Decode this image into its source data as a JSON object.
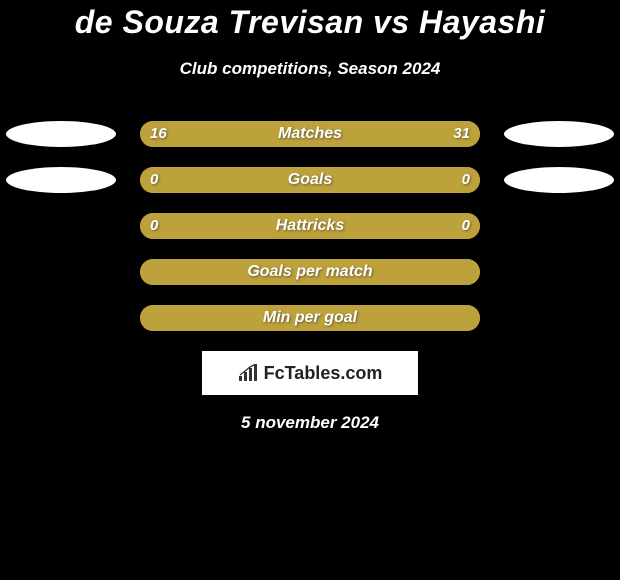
{
  "title": "de Souza Trevisan vs Hayashi",
  "subtitle": "Club competitions, Season 2024",
  "colors": {
    "background": "#000000",
    "bar": "#bda13a",
    "bar_alt": "#bda13a",
    "ellipse": "#ffffff",
    "text": "#ffffff"
  },
  "rows": [
    {
      "label": "Matches",
      "left": "16",
      "right": "31",
      "left_pct": 34,
      "show_ellipse_left": true,
      "show_ellipse_right": true,
      "show_values": true
    },
    {
      "label": "Goals",
      "left": "0",
      "right": "0",
      "left_pct": 50,
      "show_ellipse_left": true,
      "show_ellipse_right": true,
      "show_values": true
    },
    {
      "label": "Hattricks",
      "left": "0",
      "right": "0",
      "left_pct": 50,
      "show_ellipse_left": false,
      "show_ellipse_right": false,
      "show_values": true
    },
    {
      "label": "Goals per match",
      "left": "",
      "right": "",
      "left_pct": 50,
      "show_ellipse_left": false,
      "show_ellipse_right": false,
      "show_values": false
    },
    {
      "label": "Min per goal",
      "left": "",
      "right": "",
      "left_pct": 50,
      "show_ellipse_left": false,
      "show_ellipse_right": false,
      "show_values": false
    }
  ],
  "logo_text": "FcTables.com",
  "date": "5 november 2024"
}
